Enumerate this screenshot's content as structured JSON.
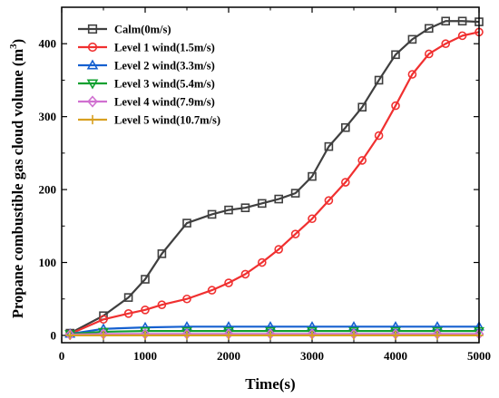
{
  "chart_data": {
    "type": "line",
    "xlabel": "Time(s)",
    "ylabel": "Propane combustible gas cloud volume (m",
    "ylabel_sup": "3",
    "ylabel_close": ")",
    "xlim": [
      0,
      5000
    ],
    "ylim": [
      -10,
      450
    ],
    "x_ticks": [
      0,
      1000,
      2000,
      3000,
      4000,
      5000
    ],
    "y_ticks": [
      0,
      100,
      200,
      300,
      400
    ],
    "legend_position": "top-left",
    "grid": false,
    "series": [
      {
        "name": "Calm(0m/s)",
        "color": "#3f3f3f",
        "marker": "square",
        "x": [
          100,
          500,
          800,
          1000,
          1200,
          1500,
          1800,
          2000,
          2200,
          2400,
          2600,
          2800,
          3000,
          3200,
          3400,
          3600,
          3800,
          4000,
          4200,
          4400,
          4600,
          4800,
          5000
        ],
        "y": [
          3,
          27,
          52,
          77,
          112,
          154,
          166,
          172,
          175,
          181,
          187,
          195,
          218,
          259,
          285,
          313,
          350,
          385,
          406,
          421,
          431,
          431,
          430
        ]
      },
      {
        "name": "Level 1 wind(1.5m/s)",
        "color": "#f03030",
        "marker": "circle",
        "x": [
          100,
          500,
          800,
          1000,
          1200,
          1500,
          1800,
          2000,
          2200,
          2400,
          2600,
          2800,
          3000,
          3200,
          3400,
          3600,
          3800,
          4000,
          4200,
          4400,
          4600,
          4800,
          5000
        ],
        "y": [
          2,
          22,
          30,
          35,
          42,
          50,
          62,
          72,
          84,
          100,
          118,
          139,
          160,
          185,
          210,
          240,
          274,
          315,
          358,
          386,
          400,
          411,
          416
        ]
      },
      {
        "name": "Level 2 wind(3.3m/s)",
        "color": "#1560d0",
        "marker": "triangle-up",
        "x": [
          100,
          500,
          1000,
          1500,
          2000,
          2500,
          3000,
          3500,
          4000,
          4500,
          5000
        ],
        "y": [
          2,
          9,
          11,
          12,
          12,
          12,
          12,
          12,
          12,
          12,
          12
        ]
      },
      {
        "name": "Level 3 wind(5.4m/s)",
        "color": "#10a030",
        "marker": "triangle-down",
        "x": [
          100,
          500,
          1000,
          1500,
          2000,
          2500,
          3000,
          3500,
          4000,
          4500,
          5000
        ],
        "y": [
          2,
          5,
          6,
          6,
          6,
          6,
          6,
          6,
          6,
          6,
          6
        ]
      },
      {
        "name": "Level 4 wind(7.9m/s)",
        "color": "#d070d0",
        "marker": "diamond",
        "x": [
          100,
          500,
          1000,
          1500,
          2000,
          2500,
          3000,
          3500,
          4000,
          4500,
          5000
        ],
        "y": [
          1,
          2,
          2,
          2,
          2,
          2,
          2,
          2,
          2,
          2,
          2
        ]
      },
      {
        "name": "Level 5 wind(10.7m/s)",
        "color": "#d8a020",
        "marker": "plus",
        "x": [
          100,
          500,
          1000,
          1500,
          2000,
          2500,
          3000,
          3500,
          4000,
          4500,
          5000
        ],
        "y": [
          0,
          0,
          0,
          0,
          0,
          0,
          0,
          0,
          0,
          0,
          0
        ]
      }
    ]
  }
}
